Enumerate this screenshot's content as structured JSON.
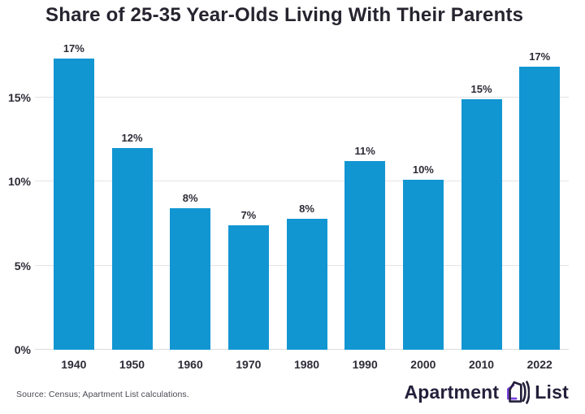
{
  "header": {
    "title": "Share of 25-35 Year-Olds Living With Their Parents"
  },
  "chart_data": {
    "type": "bar",
    "title": "Share of 25-35 Year-Olds Living With Their Parents",
    "categories": [
      "1940",
      "1950",
      "1960",
      "1970",
      "1980",
      "1990",
      "2000",
      "2010",
      "2022"
    ],
    "values": [
      17.3,
      12.0,
      8.4,
      7.4,
      7.8,
      11.2,
      10.1,
      14.9,
      16.8
    ],
    "value_labels": [
      "17%",
      "12%",
      "8%",
      "7%",
      "8%",
      "11%",
      "10%",
      "15%",
      "17%"
    ],
    "xlabel": "",
    "ylabel": "",
    "ylim": [
      0,
      17.9
    ],
    "yticks": [
      {
        "value": 0,
        "label": "0%"
      },
      {
        "value": 5,
        "label": "5%"
      },
      {
        "value": 10,
        "label": "10%"
      },
      {
        "value": 15,
        "label": "15%"
      }
    ],
    "grid": true,
    "legend": false,
    "bar_color": "#1296d2"
  },
  "footer": {
    "source": "Source: Census; Apartment List calculations.",
    "logo": {
      "text_left": "Apartment",
      "text_right": "List",
      "icon": "apartment-list-house-icon",
      "icon_purple": "#7b42e0",
      "icon_dark": "#241f3a"
    }
  },
  "colors": {
    "bar": "#1296d2",
    "grid": "#e4e4e4",
    "title_text": "#27242f",
    "axis_text": "#2e2b36",
    "source_text": "#4b4852",
    "logo_dark": "#241f3a",
    "logo_purple": "#7b42e0",
    "background": "#ffffff"
  }
}
